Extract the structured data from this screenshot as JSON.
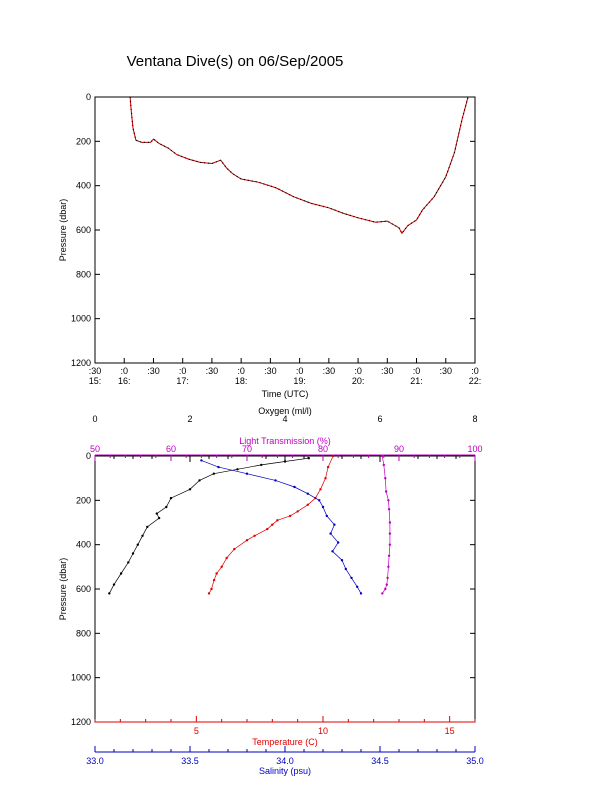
{
  "figure": {
    "title": "Ventana Dive(s) on 06/Sep/2005"
  },
  "chart_data": [
    {
      "id": "pressure-vs-time",
      "type": "line",
      "xlabel": "Time (UTC)",
      "ylabel": "Pressure (dbar)",
      "ylim": [
        1200,
        0
      ],
      "y_ticks": [
        0,
        200,
        400,
        600,
        800,
        1000,
        1200
      ],
      "x_ticks": [
        {
          "min": ":30",
          "hour": "15:"
        },
        {
          "min": ":0",
          "hour": "16:"
        },
        {
          "min": ":30",
          "hour": ""
        },
        {
          "min": ":0",
          "hour": "17:"
        },
        {
          "min": ":30",
          "hour": ""
        },
        {
          "min": ":0",
          "hour": "18:"
        },
        {
          "min": ":30",
          "hour": ""
        },
        {
          "min": ":0",
          "hour": "19:"
        },
        {
          "min": ":30",
          "hour": ""
        },
        {
          "min": ":0",
          "hour": "20:"
        },
        {
          "min": ":30",
          "hour": ""
        },
        {
          "min": ":0",
          "hour": "21:"
        },
        {
          "min": ":30",
          "hour": ""
        },
        {
          "min": ":0",
          "hour": "22:"
        }
      ],
      "series": [
        {
          "color": "#c00000",
          "x_hours": [
            16.1,
            16.12,
            16.15,
            16.2,
            16.3,
            16.45,
            16.5,
            16.6,
            16.75,
            16.9,
            17.1,
            17.3,
            17.5,
            17.65,
            17.75,
            17.85,
            18.0,
            18.3,
            18.6,
            18.9,
            19.2,
            19.5,
            19.75,
            20.0,
            20.3,
            20.5,
            20.7,
            20.75,
            20.85,
            21.0,
            21.1,
            21.3,
            21.5,
            21.65,
            21.78,
            21.88
          ],
          "y": [
            0,
            60,
            140,
            195,
            205,
            205,
            190,
            210,
            230,
            260,
            280,
            295,
            300,
            285,
            320,
            345,
            370,
            385,
            410,
            450,
            480,
            500,
            525,
            545,
            565,
            560,
            590,
            615,
            580,
            555,
            510,
            450,
            360,
            250,
            100,
            0
          ]
        }
      ]
    },
    {
      "id": "profile",
      "type": "scatter",
      "ylabel": "Pressure (dbar)",
      "ylim": [
        1200,
        0
      ],
      "y_ticks": [
        0,
        200,
        400,
        600,
        800,
        1000,
        1200
      ],
      "axes": {
        "oxygen": {
          "label": "Oxygen (ml/l)",
          "range": [
            0,
            8
          ],
          "ticks": [
            "0",
            "2",
            "4",
            "6",
            "8"
          ],
          "minor": 20,
          "color": "#000000"
        },
        "light": {
          "label": "Light Transmission (%)",
          "range": [
            50,
            100
          ],
          "ticks": [
            "50",
            "60",
            "70",
            "80",
            "90",
            "100"
          ],
          "minor": 25,
          "color": "#c000c0"
        },
        "temperature": {
          "label": "Temperature (C)",
          "range": [
            1,
            16
          ],
          "ticks": [
            "5",
            "10",
            "15"
          ],
          "tick_values": [
            5,
            10,
            15
          ],
          "minor": [
            1,
            2,
            3,
            4,
            6,
            7,
            8,
            9,
            11,
            12,
            13,
            14,
            16
          ],
          "color": "#e00000"
        },
        "salinity": {
          "label": "Salinity (psu)",
          "range": [
            33.0,
            35.0
          ],
          "ticks": [
            "33.0",
            "33.5",
            "34.0",
            "34.5",
            "35.0"
          ],
          "minor": 20,
          "color": "#0000c0"
        }
      },
      "series": [
        {
          "axis": "oxygen",
          "color": "#000000",
          "x": [
            4.5,
            4.0,
            3.5,
            3.0,
            2.5,
            2.2,
            2.0,
            1.6,
            1.5,
            1.3,
            1.35,
            1.1,
            1.0,
            0.9,
            0.8,
            0.7,
            0.55,
            0.4,
            0.3
          ],
          "y": [
            10,
            25,
            40,
            60,
            80,
            110,
            150,
            190,
            230,
            260,
            280,
            320,
            360,
            400,
            440,
            480,
            530,
            580,
            620
          ]
        },
        {
          "axis": "temperature",
          "color": "#e00000",
          "x": [
            10.4,
            10.2,
            10.1,
            9.9,
            9.7,
            9.4,
            9.0,
            8.7,
            8.2,
            8.0,
            7.8,
            7.3,
            7.0,
            6.5,
            6.2,
            6.0,
            5.8,
            5.7,
            5.6,
            5.5
          ],
          "y": [
            0,
            50,
            100,
            150,
            190,
            220,
            250,
            270,
            290,
            310,
            330,
            360,
            380,
            420,
            460,
            500,
            530,
            560,
            600,
            620
          ]
        },
        {
          "axis": "salinity",
          "color": "#0000c0",
          "x": [
            33.56,
            33.65,
            33.8,
            33.95,
            34.05,
            34.12,
            34.18,
            34.2,
            34.22,
            34.26,
            34.24,
            34.28,
            34.25,
            34.3,
            34.32,
            34.35,
            34.38,
            34.4
          ],
          "y": [
            20,
            50,
            80,
            110,
            140,
            170,
            200,
            230,
            270,
            310,
            350,
            390,
            430,
            470,
            510,
            550,
            590,
            620
          ]
        },
        {
          "axis": "light",
          "color": "#c000c0",
          "x": [
            87.8,
            88.0,
            88.2,
            88.3,
            88.6,
            88.7,
            88.8,
            88.8,
            88.8,
            88.7,
            88.6,
            88.5,
            88.4,
            88.2,
            87.8
          ],
          "y": [
            0,
            40,
            100,
            160,
            200,
            240,
            300,
            350,
            400,
            450,
            500,
            550,
            580,
            600,
            620
          ]
        }
      ]
    }
  ]
}
